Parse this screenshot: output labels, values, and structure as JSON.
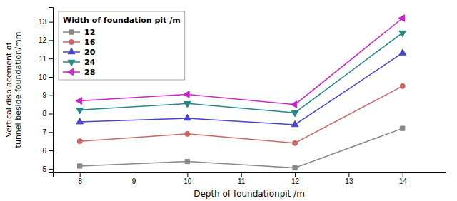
{
  "chart_data": {
    "type": "line",
    "x": [
      8,
      10,
      12,
      14
    ],
    "series": [
      {
        "name": "12",
        "color": "#888888",
        "marker": "square",
        "values": [
          5.15,
          5.4,
          5.05,
          7.2
        ]
      },
      {
        "name": "16",
        "color": "#cc6666",
        "marker": "circle",
        "values": [
          6.5,
          6.9,
          6.4,
          9.5
        ]
      },
      {
        "name": "20",
        "color": "#4444cc",
        "marker": "triangle-up",
        "values": [
          7.55,
          7.75,
          7.4,
          11.3
        ]
      },
      {
        "name": "24",
        "color": "#228888",
        "marker": "triangle-down",
        "values": [
          8.2,
          8.55,
          8.05,
          12.4
        ]
      },
      {
        "name": "28",
        "color": "#cc22cc",
        "marker": "triangle-left",
        "values": [
          8.7,
          9.05,
          8.5,
          13.2
        ]
      }
    ],
    "xlabel": "Depth of foundationpit /m",
    "ylabel": "Vertical displacement of\ntunnel beside foundation/mm",
    "legend_title": "Width of foundation pit /m",
    "legend": "upper left",
    "grid": false,
    "xlim": [
      7.5,
      14.8
    ],
    "ylim": [
      4.8,
      13.8
    ],
    "xticks": [
      8,
      9,
      10,
      11,
      12,
      13,
      14
    ],
    "yticks": [
      5,
      6,
      7,
      8,
      9,
      10,
      11,
      12,
      13
    ]
  }
}
